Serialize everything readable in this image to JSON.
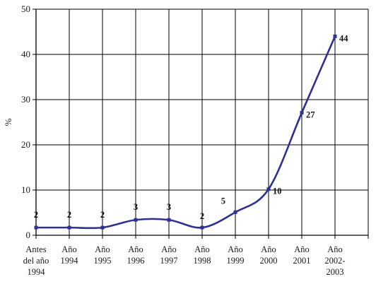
{
  "chart_data": {
    "type": "line",
    "title": "",
    "xlabel": "",
    "ylabel": "%",
    "ylim": [
      0,
      50
    ],
    "yticks": [
      "0",
      "10",
      "20",
      "30",
      "40",
      "50"
    ],
    "grid": true,
    "categories": [
      [
        "Antes",
        "del año",
        "1994"
      ],
      [
        "Año",
        "1994"
      ],
      [
        "Año",
        "1995"
      ],
      [
        "Año",
        "1996"
      ],
      [
        "Año",
        "1997"
      ],
      [
        "Año",
        "1998"
      ],
      [
        "Año",
        "1999"
      ],
      [
        "Año",
        "2000"
      ],
      [
        "Año",
        "2001"
      ],
      [
        "Año",
        "2002-",
        "2003"
      ]
    ],
    "series": [
      {
        "values": [
          1.7,
          1.7,
          1.7,
          3.4,
          3.4,
          1.7,
          5.1,
          10.2,
          27.1,
          44
        ],
        "data_labels": [
          "2",
          "2",
          "2",
          "3",
          "3",
          "2",
          "5",
          "10",
          "27",
          "44"
        ]
      }
    ],
    "line_color": "#2e3192",
    "grid_color": "#000000"
  }
}
